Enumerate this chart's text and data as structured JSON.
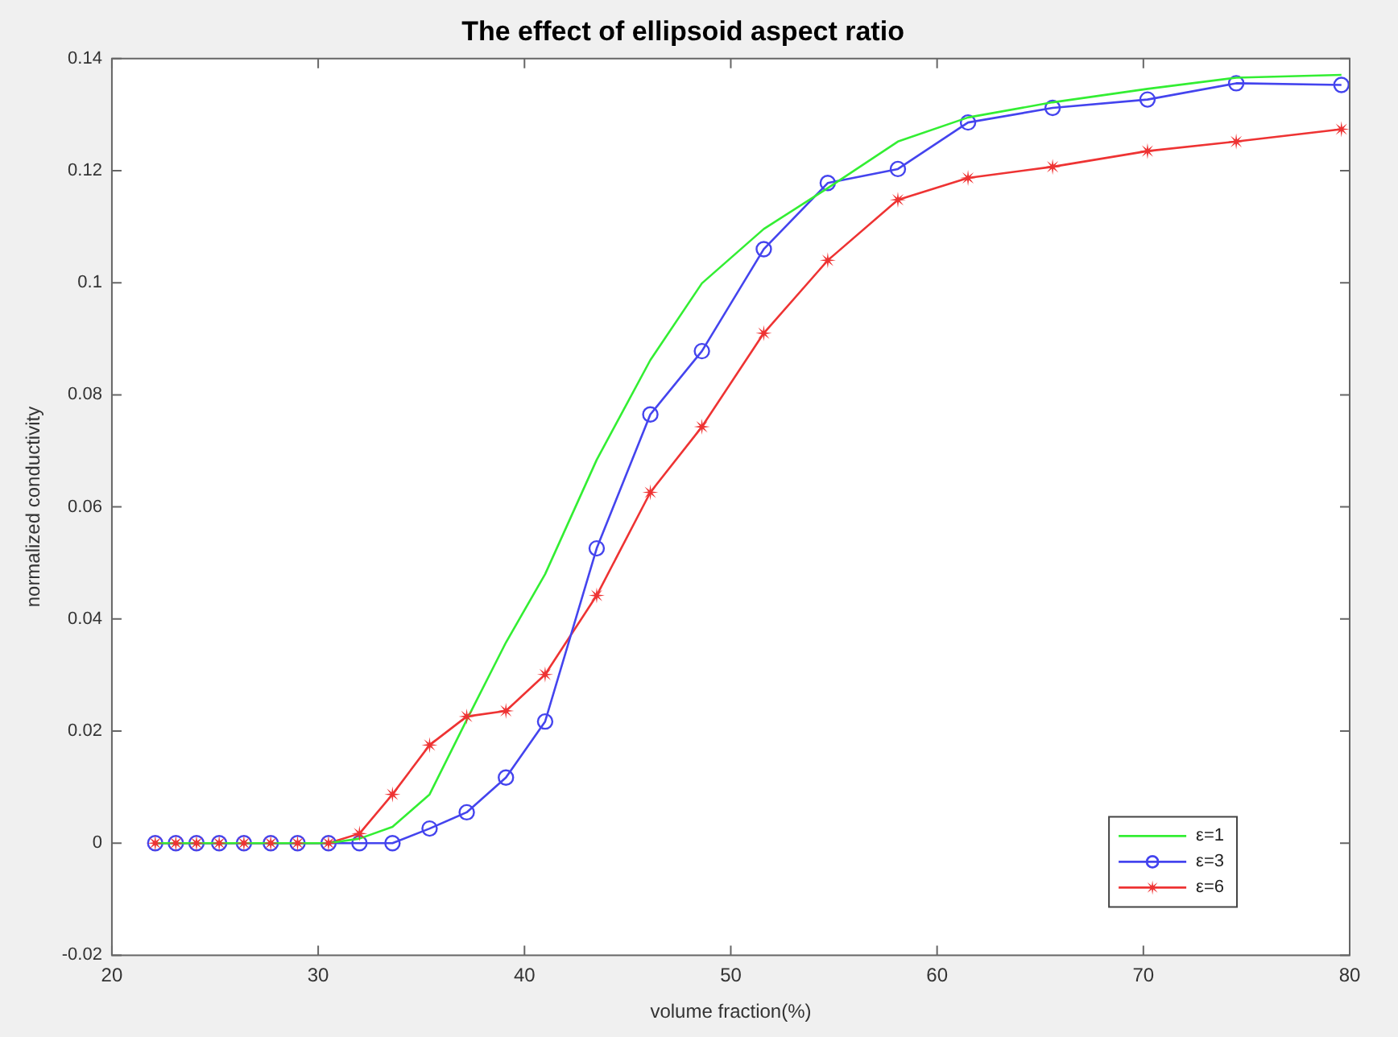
{
  "chart_data": {
    "type": "line",
    "title": "The effect of ellipsoid aspect ratio",
    "xlabel": "volume fraction(%)",
    "ylabel": "normalized conductivity",
    "x": [
      22.1,
      23.1,
      24.1,
      25.2,
      26.4,
      27.7,
      29.0,
      30.5,
      32.0,
      33.6,
      35.4,
      37.2,
      39.1,
      41.0,
      43.5,
      46.1,
      48.6,
      51.6,
      54.7,
      58.1,
      61.5,
      65.6,
      70.2,
      74.5,
      79.6
    ],
    "series": [
      {
        "name": "ε=1",
        "color": "#33ee33",
        "marker": "none",
        "values": [
          0,
          0,
          0,
          0,
          0,
          0,
          0,
          0,
          0.0008,
          0.0029,
          0.0087,
          0.022,
          0.0358,
          0.048,
          0.0684,
          0.0862,
          0.0999,
          0.1096,
          0.1169,
          0.1252,
          0.1295,
          0.1322,
          0.1346,
          0.1366,
          0.1371
        ]
      },
      {
        "name": "ε=3",
        "color": "#4444ee",
        "marker": "circle",
        "values": [
          0,
          0,
          0,
          0,
          0,
          0,
          0,
          0,
          0,
          0,
          0.0026,
          0.0055,
          0.0117,
          0.0217,
          0.0526,
          0.0765,
          0.0878,
          0.106,
          0.1178,
          0.1203,
          0.1286,
          0.1312,
          0.1327,
          0.1356,
          0.1353
        ]
      },
      {
        "name": "ε=6",
        "color": "#ee3333",
        "marker": "star",
        "values": [
          0,
          0,
          0,
          0,
          0,
          0,
          0,
          0,
          0.0017,
          0.0087,
          0.0175,
          0.0226,
          0.0236,
          0.0301,
          0.0442,
          0.0626,
          0.0743,
          0.091,
          0.104,
          0.1148,
          0.1187,
          0.1207,
          0.1235,
          0.1252,
          0.1274
        ]
      }
    ],
    "xlim": [
      20,
      80
    ],
    "xticks": [
      20,
      30,
      40,
      50,
      60,
      70,
      80
    ],
    "ylim": [
      -0.02,
      0.14
    ],
    "yticks": [
      -0.02,
      0,
      0.02,
      0.04,
      0.06,
      0.08,
      0.1,
      0.12,
      0.14
    ],
    "grid": false,
    "legend": "bottom right",
    "line_style": "solid"
  }
}
